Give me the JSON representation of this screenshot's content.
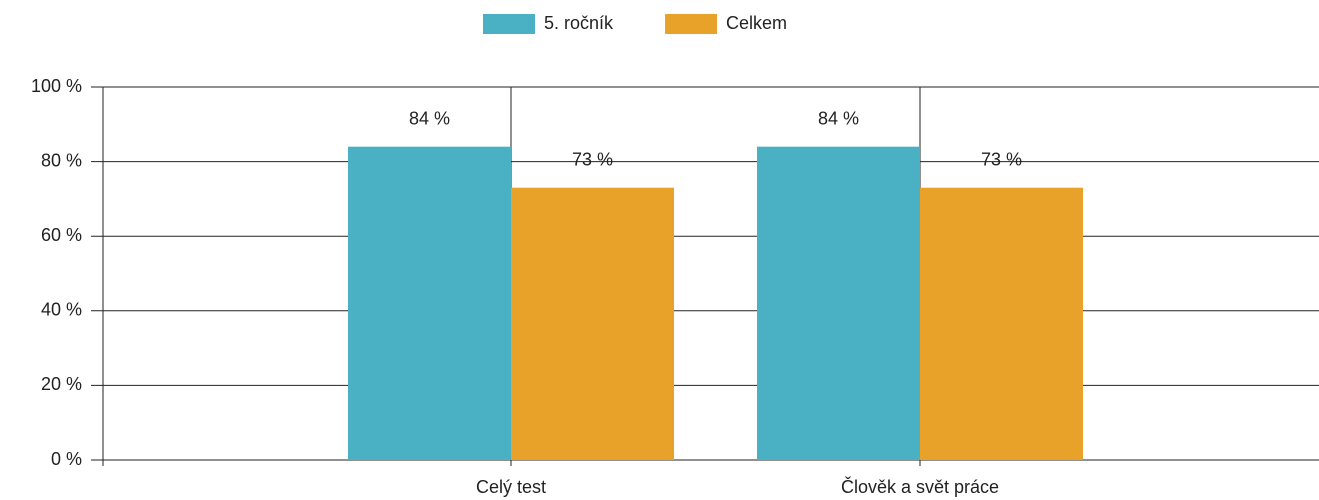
{
  "chart_data": {
    "type": "bar",
    "categories": [
      "Celý test",
      "Člověk a svět práce"
    ],
    "series": [
      {
        "name": "5. ročník",
        "color": "#4ab0c4",
        "values": [
          84,
          84
        ],
        "value_labels": [
          "84 %",
          "84 %"
        ]
      },
      {
        "name": "Celkem",
        "color": "#e8a22a",
        "values": [
          73,
          73
        ],
        "value_labels": [
          "73 %",
          "73 %"
        ]
      }
    ],
    "ylim": [
      0,
      100
    ],
    "yticks": [
      {
        "value": 0,
        "label": "0 %"
      },
      {
        "value": 20,
        "label": "20 %"
      },
      {
        "value": 40,
        "label": "40 %"
      },
      {
        "value": 60,
        "label": "60 %"
      },
      {
        "value": 80,
        "label": "80 %"
      },
      {
        "value": 100,
        "label": "100 %"
      }
    ],
    "grid": true,
    "legend": "top"
  }
}
